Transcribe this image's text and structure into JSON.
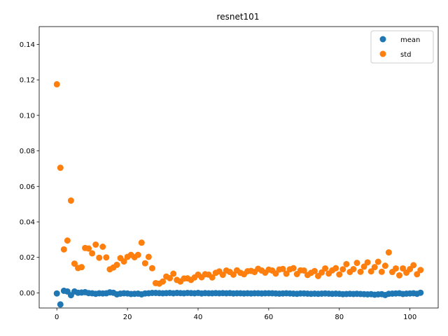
{
  "chart_data": {
    "type": "scatter",
    "title": "resnet101",
    "xlabel": "",
    "ylabel": "",
    "xlim": [
      -5,
      108
    ],
    "ylim": [
      -0.0085,
      0.15
    ],
    "xticks": [
      0,
      20,
      40,
      60,
      80,
      100
    ],
    "xtick_labels": [
      "0",
      "20",
      "40",
      "60",
      "80",
      "100"
    ],
    "yticks": [
      0.0,
      0.02,
      0.04,
      0.06,
      0.08,
      0.1,
      0.12,
      0.14
    ],
    "ytick_labels": [
      "0.00",
      "0.02",
      "0.04",
      "0.06",
      "0.08",
      "0.10",
      "0.12",
      "0.14"
    ],
    "grid": false,
    "legend": "top-right",
    "colors": {
      "mean": "#1f77b4",
      "std": "#ff7f0e"
    },
    "series": [
      {
        "name": "mean",
        "values": [
          -0.0003,
          -0.0065,
          0.0012,
          0.0008,
          -0.0013,
          0.0008,
          0.0001,
          0.0002,
          0.0004,
          -0.0001,
          -0.0002,
          -0.0005,
          -0.0002,
          -0.0003,
          -0.0002,
          0.0003,
          0.0001,
          -0.0008,
          -0.0004,
          -0.0002,
          -0.0003,
          -0.0006,
          -0.0005,
          -0.0004,
          -0.0008,
          -0.0003,
          -0.0002,
          0.0,
          0.0,
          -0.0001,
          -0.0002,
          -0.0001,
          0.0,
          -0.0002,
          0.0,
          -0.0001,
          -0.0002,
          0.0,
          -0.0001,
          -0.0002,
          0.0,
          -0.0003,
          -0.0001,
          -0.0002,
          -0.0002,
          -0.0001,
          -0.0002,
          -0.0001,
          -0.0002,
          -0.0001,
          -0.0003,
          -0.0002,
          -0.0002,
          -0.0003,
          -0.0002,
          -0.0003,
          -0.0002,
          -0.0002,
          -0.0003,
          -0.0002,
          -0.0002,
          -0.0002,
          -0.0003,
          -0.0004,
          -0.0003,
          -0.0002,
          -0.0003,
          -0.0004,
          -0.0005,
          -0.0003,
          -0.0003,
          -0.0004,
          -0.0005,
          -0.0004,
          -0.0005,
          -0.0004,
          -0.0003,
          -0.0004,
          -0.0005,
          -0.0004,
          -0.0005,
          -0.0007,
          -0.0006,
          -0.0005,
          -0.0006,
          -0.0005,
          -0.0006,
          -0.0007,
          -0.0008,
          -0.0007,
          -0.001,
          -0.0008,
          -0.0007,
          -0.0012,
          -0.0005,
          -0.0004,
          -0.0003,
          -0.0002,
          -0.0006,
          -0.0004,
          -0.0003,
          -0.0002,
          -0.0005,
          0.0001
        ]
      },
      {
        "name": "std",
        "values": [
          0.1175,
          0.0705,
          0.0245,
          0.0295,
          0.052,
          0.0165,
          0.014,
          0.0145,
          0.0253,
          0.025,
          0.0223,
          0.0272,
          0.0198,
          0.026,
          0.02,
          0.0133,
          0.0143,
          0.0158,
          0.0196,
          0.0177,
          0.0203,
          0.0214,
          0.0201,
          0.0214,
          0.0283,
          0.0167,
          0.0203,
          0.0139,
          0.0055,
          0.0052,
          0.0064,
          0.0092,
          0.0083,
          0.0108,
          0.0073,
          0.0064,
          0.0081,
          0.0082,
          0.0073,
          0.0087,
          0.0103,
          0.0088,
          0.0105,
          0.0103,
          0.0087,
          0.0113,
          0.0121,
          0.0102,
          0.0126,
          0.0118,
          0.0103,
          0.0127,
          0.0113,
          0.0105,
          0.0122,
          0.0124,
          0.0118,
          0.0136,
          0.0126,
          0.0114,
          0.0131,
          0.0126,
          0.0109,
          0.0132,
          0.0135,
          0.0108,
          0.0133,
          0.0139,
          0.0106,
          0.0127,
          0.0126,
          0.0101,
          0.0113,
          0.0123,
          0.0095,
          0.0115,
          0.0138,
          0.0109,
          0.0127,
          0.0139,
          0.0104,
          0.0133,
          0.0162,
          0.0118,
          0.0134,
          0.0169,
          0.0119,
          0.0148,
          0.0172,
          0.0121,
          0.0145,
          0.0175,
          0.0119,
          0.0153,
          0.0228,
          0.0118,
          0.0138,
          0.0099,
          0.0138,
          0.0114,
          0.0134,
          0.0156,
          0.0105,
          0.0129
        ]
      }
    ]
  }
}
